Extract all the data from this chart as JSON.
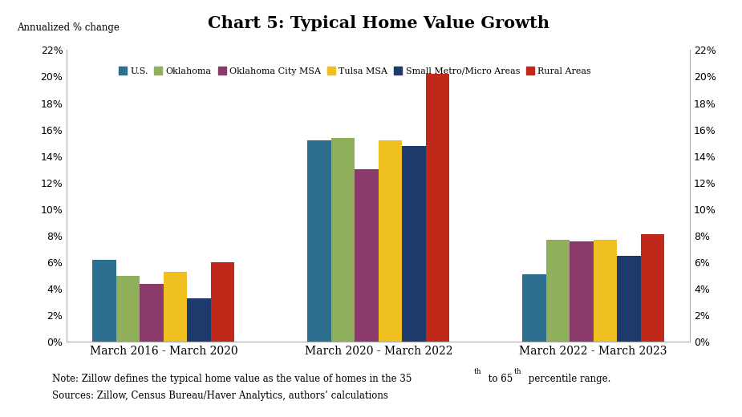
{
  "title": "Chart 5: Typical Home Value Growth",
  "ylabel_left": "Annualized % change",
  "groups": [
    "March 2016 - March 2020",
    "March 2020 - March 2022",
    "March 2022 - March 2023"
  ],
  "series": [
    {
      "label": "U.S.",
      "color": "#2E6E8E",
      "values": [
        6.2,
        15.2,
        5.1
      ]
    },
    {
      "label": "Oklahoma",
      "color": "#8FAF5A",
      "values": [
        5.0,
        15.4,
        7.7
      ]
    },
    {
      "label": "Oklahoma City MSA",
      "color": "#8B3A6B",
      "values": [
        4.4,
        13.0,
        7.6
      ]
    },
    {
      "label": "Tulsa MSA",
      "color": "#F0C020",
      "values": [
        5.3,
        15.2,
        7.7
      ]
    },
    {
      "label": "Small Metro/Micro Areas",
      "color": "#1C3A6B",
      "values": [
        3.3,
        14.8,
        6.5
      ]
    },
    {
      "label": "Rural Areas",
      "color": "#C0291A",
      "values": [
        6.0,
        20.2,
        8.1
      ]
    }
  ],
  "ylim": [
    0,
    22
  ],
  "yticks": [
    0,
    2,
    4,
    6,
    8,
    10,
    12,
    14,
    16,
    18,
    20,
    22
  ],
  "note_line1": "Note: Zillow defines the typical home value as the value of homes in the 35",
  "note_line2": "Sources: Zillow, Census Bureau/Haver Analytics, authors’ calculations",
  "background_color": "#FFFFFF",
  "bar_width": 0.11,
  "title_fontsize": 15
}
